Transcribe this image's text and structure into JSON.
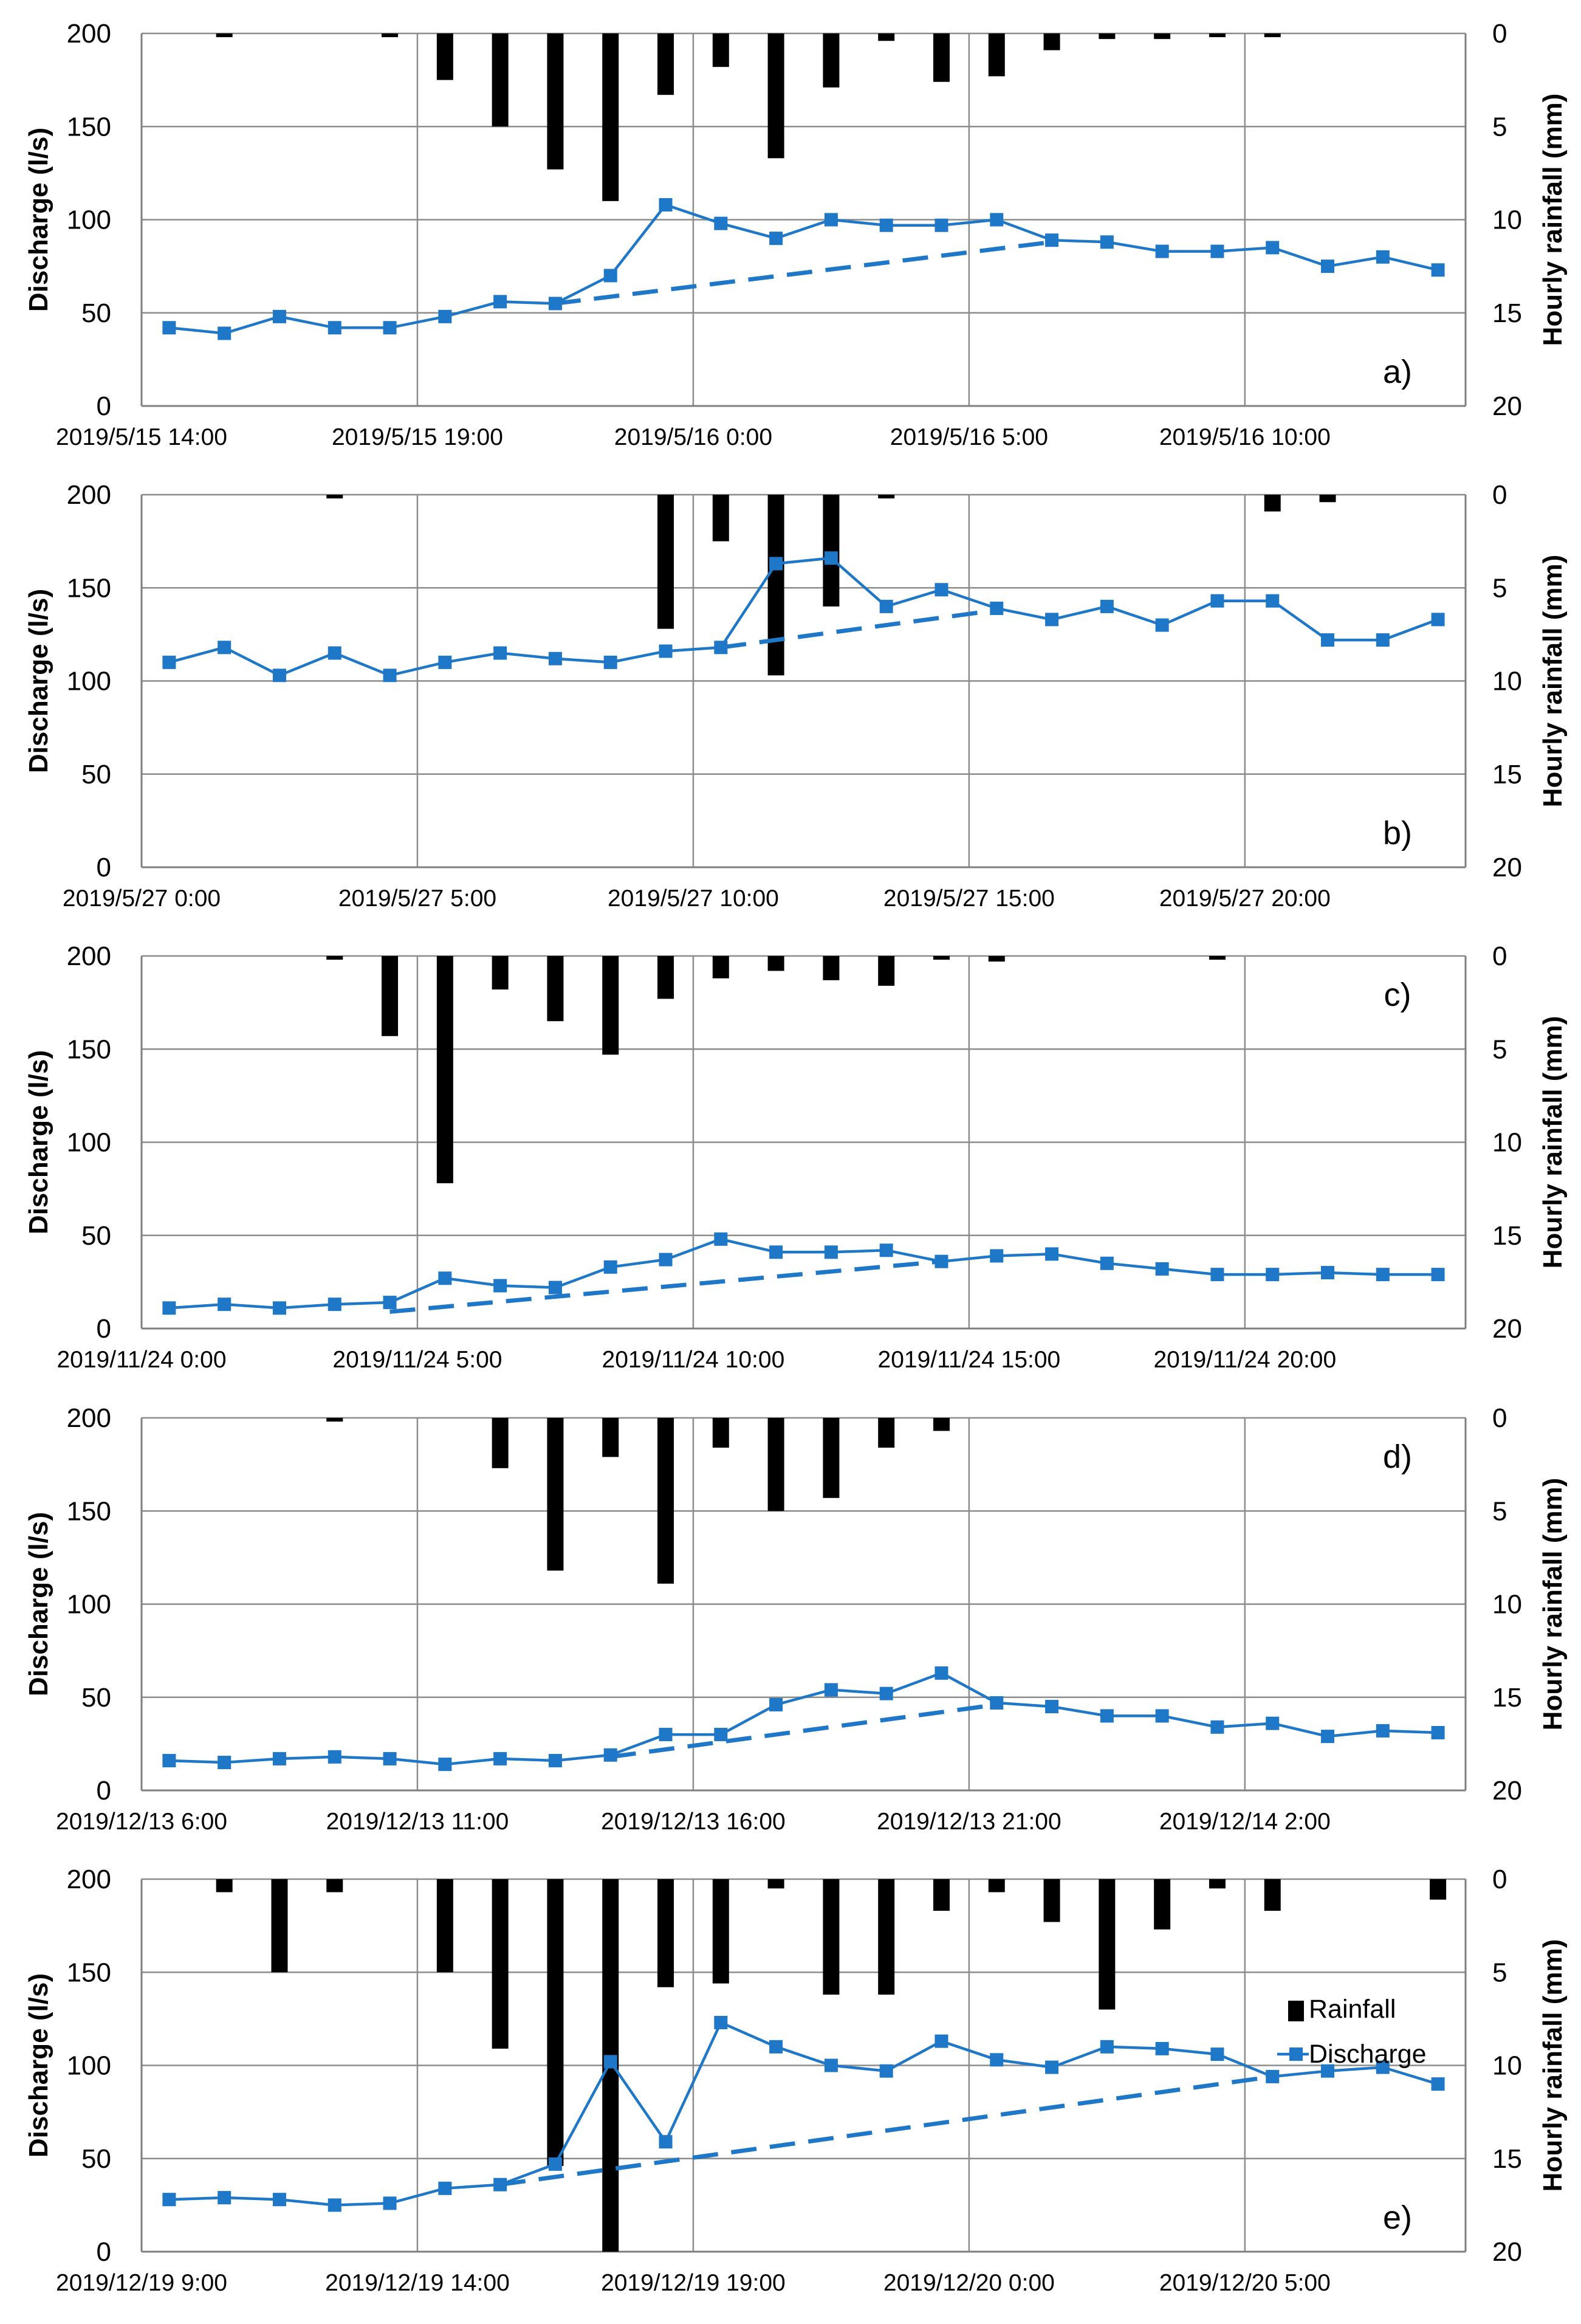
{
  "figure": {
    "colors": {
      "rainfall": "#000000",
      "discharge": "#1f77c8",
      "grid": "#8c8c8c",
      "axis": "#7f7f7f"
    }
  },
  "chart_data": [
    {
      "type": "bar+line",
      "panel_label": "a)",
      "ylabel": "Discharge (l/s)",
      "y2label": "Hourly rainfall (mm)",
      "ylim": [
        0,
        200
      ],
      "y2lim": [
        20,
        0
      ],
      "yticks": [
        "0",
        "50",
        "100",
        "150",
        "200"
      ],
      "y2ticks": [
        "0",
        "5",
        "10",
        "15",
        "20"
      ],
      "xtick_labels": [
        "2019/5/15 14:00",
        "2019/5/15 19:00",
        "2019/5/16 0:00",
        "2019/5/16 5:00",
        "2019/5/16 10:00"
      ],
      "discharge": [
        42,
        39,
        48,
        42,
        42,
        48,
        56,
        55,
        70,
        108,
        98,
        90,
        100,
        97,
        97,
        100,
        89,
        88,
        83,
        83,
        85,
        75,
        80,
        73
      ],
      "rainfall": [
        0,
        0.2,
        0,
        0,
        0.2,
        2.5,
        5.0,
        7.3,
        9.0,
        3.3,
        1.8,
        6.7,
        2.9,
        0.4,
        2.6,
        2.3,
        0.9,
        0.3,
        0.3,
        0.2,
        0.2,
        0,
        0,
        0
      ],
      "baseflow_line": {
        "from": [
          7,
          55
        ],
        "to": [
          16,
          88
        ]
      }
    },
    {
      "type": "bar+line",
      "panel_label": "b)",
      "ylabel": "Discharge (l/s)",
      "y2label": "Hourly rainfall (mm)",
      "ylim": [
        0,
        200
      ],
      "y2lim": [
        20,
        0
      ],
      "yticks": [
        "0",
        "50",
        "100",
        "150",
        "200"
      ],
      "y2ticks": [
        "0",
        "5",
        "10",
        "15",
        "20"
      ],
      "xtick_labels": [
        "2019/5/27 0:00",
        "2019/5/27 5:00",
        "2019/5/27 10:00",
        "2019/5/27 15:00",
        "2019/5/27 20:00"
      ],
      "discharge": [
        110,
        118,
        103,
        115,
        103,
        110,
        115,
        112,
        110,
        116,
        118,
        163,
        166,
        140,
        149,
        139,
        133,
        140,
        130,
        143,
        143,
        122,
        122,
        133
      ],
      "rainfall": [
        0,
        0,
        0,
        0.2,
        0,
        0,
        0,
        0,
        0,
        7.2,
        2.5,
        9.7,
        6.0,
        0.2,
        0,
        0,
        0,
        0,
        0,
        0,
        0.9,
        0.4,
        0,
        0
      ],
      "baseflow_line": {
        "from": [
          10,
          118
        ],
        "to": [
          15,
          138
        ]
      }
    },
    {
      "type": "bar+line",
      "panel_label": "c)",
      "ylabel": "Discharge (l/s)",
      "y2label": "Hourly rainfall (mm)",
      "ylim": [
        0,
        200
      ],
      "y2lim": [
        20,
        0
      ],
      "yticks": [
        "0",
        "50",
        "100",
        "150",
        "200"
      ],
      "y2ticks": [
        "0",
        "5",
        "10",
        "15",
        "20"
      ],
      "xtick_labels": [
        "2019/11/24 0:00",
        "2019/11/24 5:00",
        "2019/11/24 10:00",
        "2019/11/24 15:00",
        "2019/11/24 20:00"
      ],
      "discharge": [
        11,
        13,
        11,
        13,
        14,
        27,
        23,
        22,
        33,
        37,
        48,
        41,
        41,
        42,
        36,
        39,
        40,
        35,
        32,
        29,
        29,
        30,
        29,
        29
      ],
      "rainfall": [
        0,
        0,
        0,
        0.2,
        4.3,
        12.2,
        1.8,
        3.5,
        5.3,
        2.3,
        1.2,
        0.8,
        1.3,
        1.6,
        0.2,
        0.3,
        0,
        0,
        0,
        0.2,
        0,
        0,
        0,
        0
      ],
      "baseflow_line": {
        "from": [
          4,
          9
        ],
        "to": [
          14,
          36
        ]
      }
    },
    {
      "type": "bar+line",
      "panel_label": "d)",
      "ylabel": "Discharge (l/s)",
      "y2label": "Hourly rainfall (mm)",
      "ylim": [
        0,
        200
      ],
      "y2lim": [
        20,
        0
      ],
      "yticks": [
        "0",
        "50",
        "100",
        "150",
        "200"
      ],
      "y2ticks": [
        "0",
        "5",
        "10",
        "15",
        "20"
      ],
      "xtick_labels": [
        "2019/12/13 6:00",
        "2019/12/13 11:00",
        "2019/12/13 16:00",
        "2019/12/13 21:00",
        "2019/12/14 2:00"
      ],
      "discharge": [
        16,
        15,
        17,
        18,
        17,
        14,
        17,
        16,
        19,
        30,
        30,
        46,
        54,
        52,
        63,
        47,
        45,
        40,
        40,
        34,
        36,
        29,
        32,
        31
      ],
      "rainfall": [
        0,
        0,
        0,
        0.2,
        0,
        0,
        2.7,
        8.2,
        2.1,
        8.9,
        1.6,
        5.0,
        4.3,
        1.6,
        0.7,
        0,
        0,
        0,
        0,
        0,
        0,
        0,
        0,
        0
      ],
      "baseflow_line": {
        "from": [
          8,
          18
        ],
        "to": [
          15,
          46
        ]
      }
    },
    {
      "type": "bar+line",
      "panel_label": "e)",
      "ylabel": "Discharge (l/s)",
      "y2label": "Hourly rainfall (mm)",
      "ylim": [
        0,
        200
      ],
      "y2lim": [
        20,
        0
      ],
      "yticks": [
        "0",
        "50",
        "100",
        "150",
        "200"
      ],
      "y2ticks": [
        "0",
        "5",
        "10",
        "15",
        "20"
      ],
      "xtick_labels": [
        "2019/12/19 9:00",
        "2019/12/19 14:00",
        "2019/12/19 19:00",
        "2019/12/20 0:00",
        "2019/12/20 5:00"
      ],
      "legend": [
        "Rainfall",
        "Discharge"
      ],
      "discharge": [
        28,
        29,
        28,
        25,
        26,
        34,
        36,
        47,
        102,
        59,
        123,
        110,
        100,
        97,
        113,
        103,
        99,
        110,
        109,
        106,
        94,
        97,
        99,
        90
      ],
      "rainfall": [
        0,
        0.7,
        5.0,
        0.7,
        0,
        5.0,
        9.1,
        15.4,
        20.0,
        5.8,
        5.6,
        0.5,
        6.2,
        6.2,
        1.7,
        0.7,
        2.3,
        7.0,
        2.7,
        0.5,
        1.7,
        0,
        0,
        1.1
      ],
      "baseflow_line": {
        "from": [
          6,
          36
        ],
        "to": [
          20,
          94
        ]
      }
    }
  ]
}
